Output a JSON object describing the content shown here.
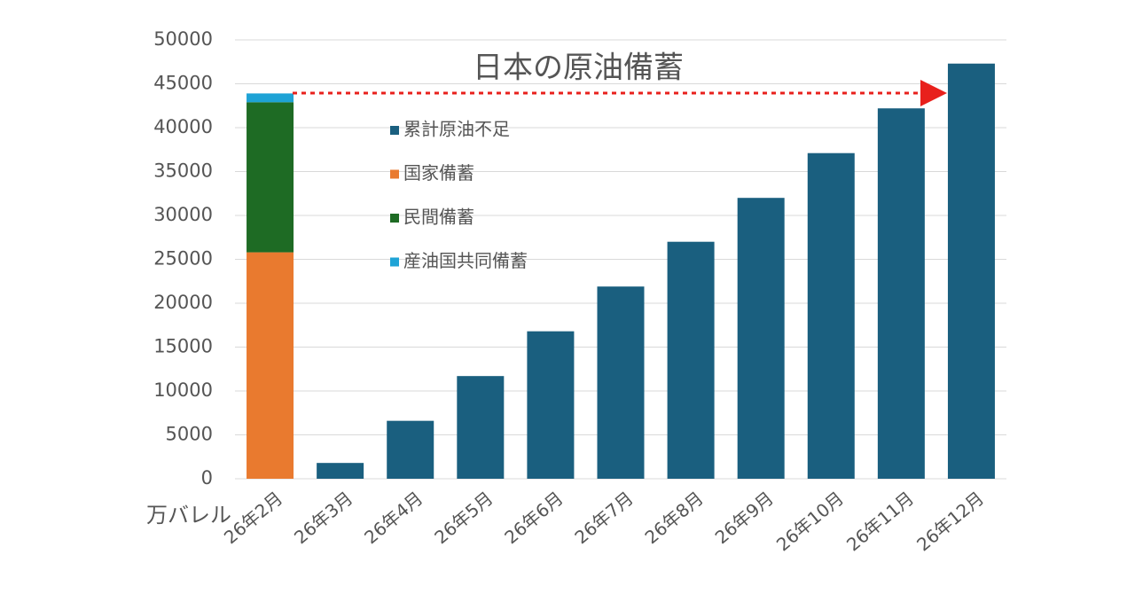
{
  "chart_data": {
    "type": "bar",
    "stacked": true,
    "title": "日本の原油備蓄",
    "ylabel": "万バレル",
    "categories": [
      "26年2月",
      "26年3月",
      "26年4月",
      "26年5月",
      "26年6月",
      "26年7月",
      "26年8月",
      "26年9月",
      "26年10月",
      "26年11月",
      "26年12月"
    ],
    "series": [
      {
        "name": "累計原油不足",
        "color": "#1a5f7f",
        "values": [
          null,
          1800,
          6600,
          11700,
          16800,
          21900,
          27000,
          32000,
          37100,
          42200,
          47300
        ]
      },
      {
        "name": "国家備蓄",
        "color": "#e97a2f",
        "values": [
          25800,
          null,
          null,
          null,
          null,
          null,
          null,
          null,
          null,
          null,
          null
        ]
      },
      {
        "name": "民間備蓄",
        "color": "#1e6b24",
        "values": [
          17100,
          null,
          null,
          null,
          null,
          null,
          null,
          null,
          null,
          null,
          null
        ]
      },
      {
        "name": "産油国共同備蓄",
        "color": "#1ea3d6",
        "values": [
          1000,
          null,
          null,
          null,
          null,
          null,
          null,
          null,
          null,
          null,
          null
        ]
      }
    ],
    "ylim": [
      0,
      50000
    ],
    "yticks": [
      0,
      5000,
      10000,
      15000,
      20000,
      25000,
      30000,
      35000,
      40000,
      45000,
      50000
    ],
    "grid": true
  }
}
